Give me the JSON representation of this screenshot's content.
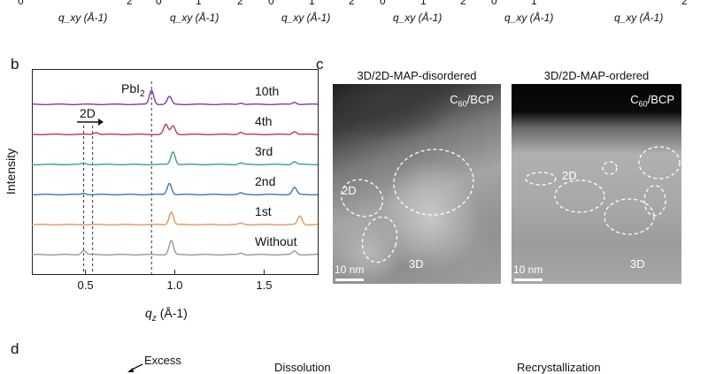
{
  "top_strip": {
    "tick_labels": [
      "0",
      "2",
      "0",
      "1",
      "2",
      "0",
      "1",
      "2",
      "0",
      "1",
      "2",
      "0",
      "1",
      "2"
    ],
    "xlabels": [
      "q_xy (Å-1)",
      "q_xy (Å-1)",
      "q_xy (Å-1)",
      "q_xy (Å-1)",
      "q_xy (Å-1)",
      "q_xy (Å-1)"
    ]
  },
  "panel_b": {
    "letter": "b",
    "ylabel": "Intensity",
    "xlabel_main": "q",
    "xlabel_sub": "z",
    "xlabel_unit": "(Å-1)",
    "annotation_pbi2": "PbI",
    "annotation_pbi2_sub": "2",
    "annotation_2d": "2D",
    "x_ticks": [
      "0.5",
      "1.0",
      "1.5"
    ]
  },
  "chart_data": {
    "type": "line",
    "xlim": [
      0.2,
      1.8
    ],
    "xlabel": "q_z (Å-1)",
    "ylabel": "Intensity",
    "x_ticks": [
      0.5,
      1.0,
      1.5
    ],
    "grid": false,
    "legend": "labels at right of each trace",
    "series": [
      {
        "name": "10th",
        "color": "#7b3fa0",
        "peaks": [
          {
            "x": 0.87,
            "h": 1.0
          },
          {
            "x": 0.97,
            "h": 0.55
          },
          {
            "x": 1.37,
            "h": 0.1
          },
          {
            "x": 1.67,
            "h": 0.15
          }
        ]
      },
      {
        "name": "4th",
        "color": "#c0394a",
        "peaks": [
          {
            "x": 0.56,
            "h": 0.15
          },
          {
            "x": 0.95,
            "h": 0.7
          },
          {
            "x": 0.99,
            "h": 0.6
          },
          {
            "x": 1.37,
            "h": 0.15
          },
          {
            "x": 1.67,
            "h": 0.2
          }
        ]
      },
      {
        "name": "3rd",
        "color": "#3a9e9a",
        "peaks": [
          {
            "x": 0.49,
            "h": 0.1
          },
          {
            "x": 0.99,
            "h": 0.9
          },
          {
            "x": 1.37,
            "h": 0.1
          },
          {
            "x": 1.67,
            "h": 0.2
          }
        ]
      },
      {
        "name": "2nd",
        "color": "#3a78b5",
        "peaks": [
          {
            "x": 0.49,
            "h": 0.1
          },
          {
            "x": 0.97,
            "h": 0.8
          },
          {
            "x": 1.37,
            "h": 0.1
          },
          {
            "x": 1.67,
            "h": 0.5
          }
        ]
      },
      {
        "name": "1st",
        "color": "#e8955a",
        "peaks": [
          {
            "x": 0.98,
            "h": 0.9
          },
          {
            "x": 1.37,
            "h": 0.1
          },
          {
            "x": 1.7,
            "h": 0.6
          }
        ]
      },
      {
        "name": "Without",
        "color": "#999999",
        "peaks": [
          {
            "x": 0.49,
            "h": 0.3
          },
          {
            "x": 0.98,
            "h": 1.0
          },
          {
            "x": 1.37,
            "h": 0.1
          },
          {
            "x": 1.67,
            "h": 0.25
          }
        ]
      }
    ],
    "vlines": [
      0.49,
      0.54,
      0.87
    ]
  },
  "panel_c": {
    "letter": "c",
    "left": {
      "title": "3D/2D-MAP-disordered",
      "layer_main": "C",
      "layer_sub": "60",
      "layer_tail": "/BCP",
      "label_2d": "2D",
      "label_3d": "3D",
      "scale": "10 nm"
    },
    "right": {
      "title": "3D/2D-MAP-ordered",
      "layer_main": "C",
      "layer_sub": "60",
      "layer_tail": "/BCP",
      "label_2d": "2D",
      "label_3d": "3D",
      "scale": "10 nm"
    }
  },
  "panel_d": {
    "letter": "d",
    "excess": "Excess",
    "dissolution": "Dissolution",
    "recrystallization": "Recrystallization"
  }
}
